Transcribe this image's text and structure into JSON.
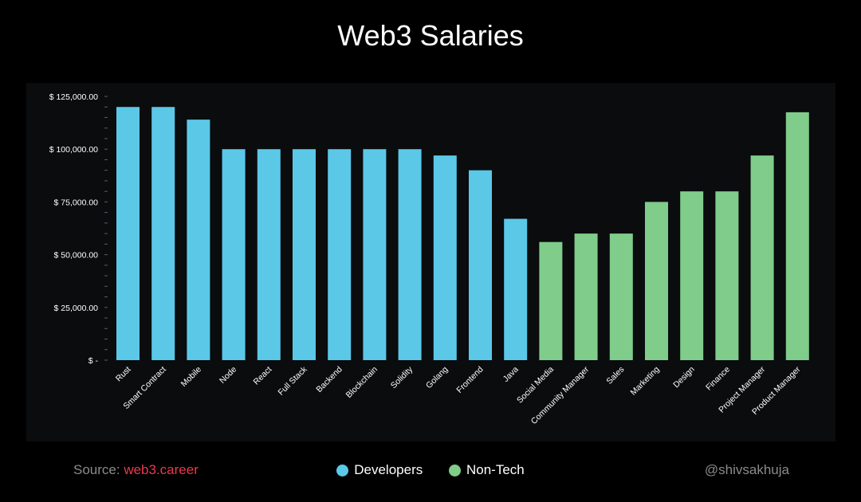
{
  "chart_data": {
    "type": "bar",
    "title": "Web3 Salaries",
    "categories": [
      "Rust",
      "Smart Contract",
      "Mobile",
      "Node",
      "React",
      "Full Stack",
      "Backend",
      "Blockchain",
      "Solidity",
      "Golang",
      "Frontend",
      "Java",
      "Social Media",
      "Community Manager",
      "Sales",
      "Marketing",
      "Design",
      "Finance",
      "Project Manager",
      "Product Manager"
    ],
    "values": [
      120000,
      120000,
      114000,
      100000,
      100000,
      100000,
      100000,
      100000,
      100000,
      97000,
      90000,
      67000,
      56000,
      60000,
      60000,
      75000,
      80000,
      80000,
      97000,
      117500
    ],
    "groups": [
      "Developers",
      "Developers",
      "Developers",
      "Developers",
      "Developers",
      "Developers",
      "Developers",
      "Developers",
      "Developers",
      "Developers",
      "Developers",
      "Developers",
      "Non-Tech",
      "Non-Tech",
      "Non-Tech",
      "Non-Tech",
      "Non-Tech",
      "Non-Tech",
      "Non-Tech",
      "Non-Tech"
    ],
    "ylim": [
      0,
      125000
    ],
    "yticks": [
      0,
      25000,
      50000,
      75000,
      100000,
      125000
    ],
    "ytick_labels": [
      "$ -",
      "$ 25,000.00",
      "$ 50,000.00",
      "$ 75,000.00",
      "$ 100,000.00",
      "$ 125,000.00"
    ],
    "grid": false,
    "legend_position": "bottom-center"
  },
  "legend": [
    {
      "label": "Developers",
      "color": "#5bc8e8"
    },
    {
      "label": "Non-Tech",
      "color": "#80cc8a"
    }
  ],
  "footer": {
    "source_prefix": "Source: ",
    "source_link": "web3.career",
    "handle": "@shivsakhuja"
  }
}
